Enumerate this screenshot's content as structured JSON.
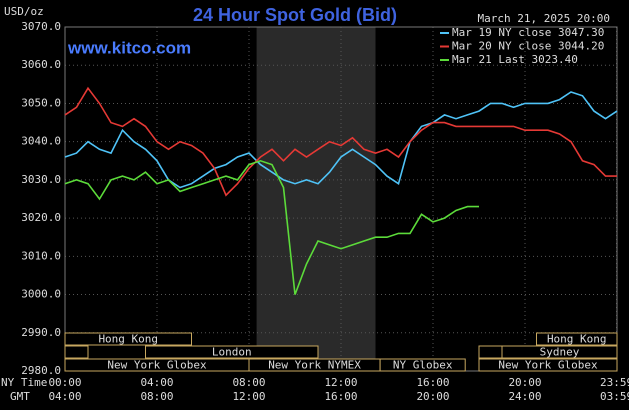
{
  "chart_data": {
    "type": "line",
    "title": "24 Hour Spot Gold (Bid)",
    "y_unit": "USD/oz",
    "timestamp": "March 21, 2025 20:00",
    "source": "www.kitco.com",
    "x_axis_label": "NY Time",
    "x2_axis_label": "GMT",
    "x": [
      0,
      0.5,
      1,
      1.5,
      2,
      2.5,
      3,
      3.5,
      4,
      4.5,
      5,
      5.5,
      6,
      6.5,
      7,
      7.5,
      8,
      8.5,
      9,
      9.5,
      10,
      10.5,
      11,
      11.5,
      12,
      12.5,
      13,
      13.5,
      14,
      14.5,
      15,
      15.5,
      16,
      16.5,
      17,
      17.5,
      18,
      18.5,
      19,
      19.5,
      20,
      20.5,
      21,
      21.5,
      22,
      22.5,
      23,
      23.5,
      24
    ],
    "xlim": [
      0,
      24
    ],
    "xticks": [
      {
        "value": 0,
        "label": "00:00"
      },
      {
        "value": 4,
        "label": "04:00"
      },
      {
        "value": 8,
        "label": "08:00"
      },
      {
        "value": 12,
        "label": "12:00"
      },
      {
        "value": 16,
        "label": "16:00"
      },
      {
        "value": 20,
        "label": "20:00"
      },
      {
        "value": 23.98,
        "label": "23:59"
      }
    ],
    "x2tick_labels": [
      "04:00",
      "08:00",
      "12:00",
      "16:00",
      "20:00",
      "24:00",
      "03:59"
    ],
    "ylim": [
      2980,
      3070
    ],
    "yticks": [
      {
        "value": 2980,
        "label": "2980.0"
      },
      {
        "value": 2990,
        "label": "2990.0"
      },
      {
        "value": 3000,
        "label": "3000.0"
      },
      {
        "value": 3010,
        "label": "3010.0"
      },
      {
        "value": 3020,
        "label": "3020.0"
      },
      {
        "value": 3030,
        "label": "3030.0"
      },
      {
        "value": 3040,
        "label": "3040.0"
      },
      {
        "value": 3050,
        "label": "3050.0"
      },
      {
        "value": 3060,
        "label": "3060.0"
      },
      {
        "value": 3070,
        "label": "3070.0"
      }
    ],
    "grid": true,
    "legend": "top-right",
    "shaded_hours": [
      8.33,
      13.5
    ],
    "sessions": [
      {
        "row": 1,
        "start": 0,
        "end": 5.5,
        "label": "Hong Kong"
      },
      {
        "row": 1,
        "start": 20.5,
        "end": 24,
        "label": "Hong Kong"
      },
      {
        "row": 2,
        "start": 0,
        "end": 1
      },
      {
        "row": 2,
        "start": 3.5,
        "end": 11,
        "label": "London"
      },
      {
        "row": 2,
        "start": 18,
        "end": 19
      },
      {
        "row": 2,
        "start": 19,
        "end": 24,
        "label": "Sydney"
      },
      {
        "row": 3,
        "start": 0,
        "end": 8,
        "label": "New York Globex"
      },
      {
        "row": 3,
        "start": 8,
        "end": 13.7,
        "label": "New York NYMEX"
      },
      {
        "row": 3,
        "start": 13.7,
        "end": 17.4,
        "label": "NY Globex"
      },
      {
        "row": 3,
        "start": 18,
        "end": 24,
        "label": "New York Globex"
      }
    ],
    "series": [
      {
        "name": "Mar 19 NY close 3047.30",
        "color": "#4fc3f7",
        "values": [
          3036,
          3037,
          3040,
          3038,
          3037,
          3043,
          3040,
          3038,
          3035,
          3030,
          3028,
          3029,
          3031,
          3033,
          3034,
          3036,
          3037,
          3034,
          3032,
          3030,
          3029,
          3030,
          3029,
          3032,
          3036,
          3038,
          3036,
          3034,
          3031,
          3029,
          3040,
          3044,
          3045,
          3047,
          3046,
          3047,
          3048,
          3050,
          3050,
          3049,
          3050,
          3050,
          3050,
          3051,
          3053,
          3052,
          3048,
          3046,
          3048
        ]
      },
      {
        "name": "Mar 20 NY close 3044.20",
        "color": "#e53935",
        "values": [
          3047,
          3049,
          3054,
          3050,
          3045,
          3044,
          3046,
          3044,
          3040,
          3038,
          3040,
          3039,
          3037,
          3033,
          3026,
          3029,
          3033,
          3036,
          3038,
          3035,
          3038,
          3036,
          3038,
          3040,
          3039,
          3041,
          3038,
          3037,
          3038,
          3036,
          3040,
          3043,
          3045,
          3045,
          3044,
          3044,
          3044,
          3044,
          3044,
          3044,
          3043,
          3043,
          3043,
          3042,
          3040,
          3035,
          3034,
          3031,
          3031
        ]
      },
      {
        "name": "Mar 21 Last 3023.40",
        "color": "#5cdb3a",
        "values": [
          3029,
          3030,
          3029,
          3025,
          3030,
          3031,
          3030,
          3032,
          3029,
          3030,
          3027,
          3028,
          3029,
          3030,
          3031,
          3030,
          3034,
          3035,
          3034,
          3028,
          3000,
          3008,
          3014,
          3013,
          3012,
          3013,
          3014,
          3015,
          3015,
          3016,
          3016,
          3021,
          3019,
          3020,
          3022,
          3023,
          3023,
          null,
          null,
          null,
          null,
          null,
          null,
          null,
          null,
          null,
          null,
          null,
          null
        ]
      }
    ]
  }
}
